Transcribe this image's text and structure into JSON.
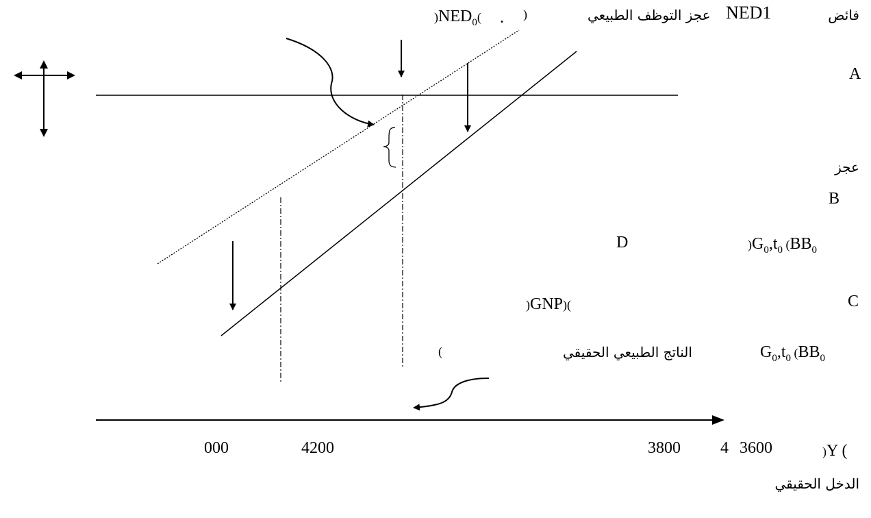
{
  "labels": {
    "surplus": "فائض",
    "ned1": "NED1",
    "deficit_natural_employment": "عجز التوظف الطبيعي",
    "paren_close_top": ")",
    "ned0_open": ")",
    "ned0_name": "NED",
    "ned0_sub": "0",
    "ned0_close": "(",
    "ned0_dot": ".",
    "point_a": "A",
    "deficit": "عجز",
    "point_b": "B",
    "point_d": "D",
    "bb0_upper_open": ")",
    "bb0_upper_g": "G",
    "bb0_upper_g_sub": "0",
    "bb0_upper_comma": ",t",
    "bb0_upper_t_sub": "0",
    "bb0_upper_paren": " (",
    "bb0_upper_bb": "BB",
    "bb0_upper_bb_sub": "0",
    "gnp_open": ")",
    "gnp_text": "GNP",
    "gnp_close": ")",
    "gnp_close2": "(",
    "point_c": "C",
    "paren_mid": "(",
    "natural_real_output": "الناتج الطبيعي الحقيقي",
    "bb0_lower_g": "G",
    "bb0_lower_g_sub": "0",
    "bb0_lower_comma": ",t",
    "bb0_lower_t_sub": "0",
    "bb0_lower_paren": " (",
    "bb0_lower_bb": "BB",
    "bb0_lower_bb_sub": "0",
    "y_axis_open": ")",
    "y_axis_text": "Y (",
    "real_income": "الدخل الحقيقي",
    "tick_000": "000",
    "tick_4200": "4200",
    "tick_3800": "3800",
    "tick_4": "4",
    "tick_3600": "3600"
  }
}
